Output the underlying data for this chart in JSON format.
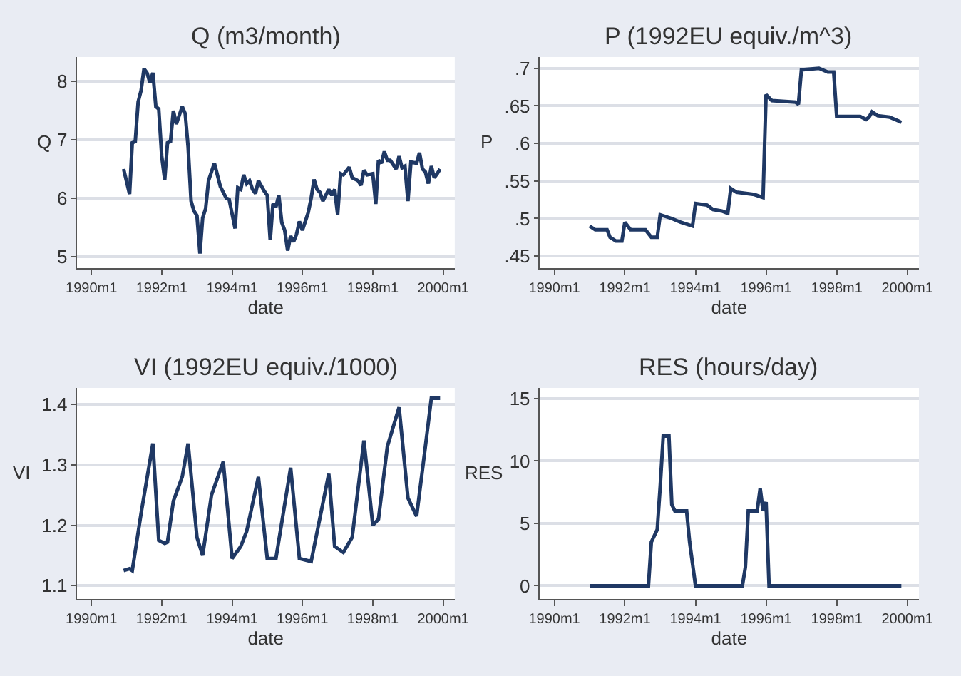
{
  "chart_data": [
    {
      "type": "line",
      "title": "Q (m3/month)",
      "xlabel": "date",
      "ylabel": "Q",
      "grid": "y",
      "xlim": [
        "1989-08",
        "2000-05"
      ],
      "xticks": [
        {
          "value": "1990-01",
          "label": "1990m1"
        },
        {
          "value": "1992-01",
          "label": "1992m1"
        },
        {
          "value": "1994-01",
          "label": "1994m1"
        },
        {
          "value": "1996-01",
          "label": "1996m1"
        },
        {
          "value": "1998-01",
          "label": "1998m1"
        },
        {
          "value": "2000-01",
          "label": "2000m1"
        }
      ],
      "ylim": [
        4.8,
        8.42
      ],
      "yticks": [
        5,
        6,
        7,
        8
      ],
      "series": [
        {
          "color": "#1f3864",
          "x": [
            "1990-12",
            "1991-02",
            "1991-03",
            "1991-04",
            "1991-05",
            "1991-06",
            "1991-07",
            "1991-08",
            "1991-09",
            "1991-10",
            "1991-11",
            "1991-12",
            "1992-01",
            "1992-02",
            "1992-03",
            "1992-04",
            "1992-05",
            "1992-06",
            "1992-07",
            "1992-08",
            "1992-09",
            "1992-10",
            "1992-11",
            "1992-12",
            "1993-01",
            "1993-02",
            "1993-03",
            "1993-04",
            "1993-05",
            "1993-07",
            "1993-09",
            "1993-11",
            "1993-12",
            "1994-02",
            "1994-03",
            "1994-04",
            "1994-05",
            "1994-06",
            "1994-07",
            "1994-08",
            "1994-09",
            "1994-10",
            "1994-12",
            "1995-01",
            "1995-02",
            "1995-03",
            "1995-04",
            "1995-05",
            "1995-06",
            "1995-07",
            "1995-08",
            "1995-09",
            "1995-10",
            "1995-11",
            "1995-12",
            "1996-01",
            "1996-03",
            "1996-04",
            "1996-05",
            "1996-06",
            "1996-07",
            "1996-08",
            "1996-10",
            "1996-11",
            "1996-12",
            "1997-01",
            "1997-02",
            "1997-03",
            "1997-05",
            "1997-06",
            "1997-08",
            "1997-09",
            "1997-10",
            "1997-11",
            "1998-01",
            "1998-02",
            "1998-03",
            "1998-04",
            "1998-05",
            "1998-06",
            "1998-07",
            "1998-09",
            "1998-10",
            "1998-11",
            "1998-12",
            "1999-01",
            "1999-02",
            "1999-04",
            "1999-05",
            "1999-06",
            "1999-07",
            "1999-08",
            "1999-09",
            "1999-10",
            "1999-11",
            "1999-12"
          ],
          "values": [
            6.5,
            6.07,
            6.95,
            6.97,
            7.65,
            7.85,
            8.22,
            8.15,
            7.98,
            8.15,
            7.57,
            7.53,
            6.72,
            6.32,
            6.95,
            6.97,
            7.5,
            7.27,
            7.42,
            7.57,
            7.45,
            6.88,
            5.95,
            5.78,
            5.7,
            5.05,
            5.66,
            5.82,
            6.3,
            6.6,
            6.2,
            6.0,
            5.98,
            5.48,
            6.18,
            6.15,
            6.4,
            6.25,
            6.3,
            6.15,
            6.08,
            6.3,
            6.12,
            6.05,
            5.28,
            5.9,
            5.85,
            6.05,
            5.58,
            5.45,
            5.1,
            5.35,
            5.25,
            5.38,
            5.6,
            5.45,
            5.75,
            6.0,
            6.32,
            6.15,
            6.1,
            5.95,
            6.15,
            6.05,
            6.15,
            5.72,
            6.42,
            6.4,
            6.53,
            6.35,
            6.3,
            6.22,
            6.48,
            6.4,
            6.42,
            5.9,
            6.65,
            6.6,
            6.8,
            6.65,
            6.65,
            6.5,
            6.72,
            6.52,
            6.55,
            5.95,
            6.62,
            6.6,
            6.78,
            6.5,
            6.45,
            6.25,
            6.55,
            6.35,
            6.42,
            6.5
          ]
        }
      ]
    },
    {
      "type": "line",
      "title": "P (1992EU equiv./m^3)",
      "xlabel": "date",
      "ylabel": "P",
      "grid": "y",
      "xlim": [
        "1989-08",
        "2000-05"
      ],
      "xticks": [
        {
          "value": "1990-01",
          "label": "1990m1"
        },
        {
          "value": "1992-01",
          "label": "1992m1"
        },
        {
          "value": "1994-01",
          "label": "1994m1"
        },
        {
          "value": "1996-01",
          "label": "1996m1"
        },
        {
          "value": "1998-01",
          "label": "1998m1"
        },
        {
          "value": "2000-01",
          "label": "2000m1"
        }
      ],
      "ylim": [
        0.434,
        0.715
      ],
      "yticks": [
        {
          "value": 0.45,
          "label": ".45"
        },
        {
          "value": 0.5,
          "label": ".5"
        },
        {
          "value": 0.55,
          "label": ".55"
        },
        {
          "value": 0.6,
          "label": ".6"
        },
        {
          "value": 0.65,
          "label": ".65"
        },
        {
          "value": 0.7,
          "label": ".7"
        }
      ],
      "series": [
        {
          "color": "#1f3864",
          "x": [
            "1991-01",
            "1991-03",
            "1991-07",
            "1991-08",
            "1991-10",
            "1991-12",
            "1992-01",
            "1992-03",
            "1992-08",
            "1992-10",
            "1992-12",
            "1993-01",
            "1993-05",
            "1993-08",
            "1993-12",
            "1994-01",
            "1994-05",
            "1994-07",
            "1994-10",
            "1994-12",
            "1995-01",
            "1995-03",
            "1995-09",
            "1995-12",
            "1996-01",
            "1996-03",
            "1996-11",
            "1996-12",
            "1997-01",
            "1997-07",
            "1997-10",
            "1997-12",
            "1998-01",
            "1998-09",
            "1998-11",
            "1998-12",
            "1999-01",
            "1999-03",
            "1999-07",
            "1999-10",
            "1999-11"
          ],
          "values": [
            0.49,
            0.485,
            0.485,
            0.475,
            0.47,
            0.47,
            0.495,
            0.485,
            0.485,
            0.475,
            0.475,
            0.505,
            0.5,
            0.495,
            0.49,
            0.52,
            0.518,
            0.512,
            0.51,
            0.507,
            0.54,
            0.535,
            0.532,
            0.528,
            0.665,
            0.657,
            0.655,
            0.652,
            0.698,
            0.7,
            0.695,
            0.695,
            0.636,
            0.636,
            0.632,
            0.635,
            0.642,
            0.637,
            0.635,
            0.63,
            0.628
          ]
        }
      ]
    },
    {
      "type": "line",
      "title": "VI (1992EU equiv./1000)",
      "xlabel": "date",
      "ylabel": "VI",
      "grid": "y",
      "xlim": [
        "1989-08",
        "2000-05"
      ],
      "xticks": [
        {
          "value": "1990-01",
          "label": "1990m1"
        },
        {
          "value": "1992-01",
          "label": "1992m1"
        },
        {
          "value": "1994-01",
          "label": "1994m1"
        },
        {
          "value": "1996-01",
          "label": "1996m1"
        },
        {
          "value": "1998-01",
          "label": "1998m1"
        },
        {
          "value": "2000-01",
          "label": "2000m1"
        }
      ],
      "ylim": [
        1.078,
        1.427
      ],
      "yticks": [
        1.1,
        1.2,
        1.3,
        1.4
      ],
      "series": [
        {
          "color": "#1f3864",
          "x": [
            "1990-12",
            "1991-02",
            "1991-03",
            "1991-06",
            "1991-10",
            "1991-12",
            "1992-02",
            "1992-03",
            "1992-05",
            "1992-08",
            "1992-10",
            "1993-01",
            "1993-03",
            "1993-06",
            "1993-10",
            "1994-01",
            "1994-04",
            "1994-06",
            "1994-10",
            "1995-01",
            "1995-04",
            "1995-09",
            "1995-12",
            "1996-04",
            "1996-10",
            "1996-12",
            "1997-03",
            "1997-06",
            "1997-10",
            "1998-01",
            "1998-03",
            "1998-06",
            "1998-10",
            "1999-01",
            "1999-04",
            "1999-07",
            "1999-09",
            "1999-12"
          ],
          "values": [
            1.125,
            1.128,
            1.125,
            1.22,
            1.335,
            1.175,
            1.17,
            1.172,
            1.24,
            1.28,
            1.335,
            1.18,
            1.15,
            1.25,
            1.305,
            1.145,
            1.165,
            1.19,
            1.28,
            1.145,
            1.145,
            1.295,
            1.145,
            1.14,
            1.285,
            1.165,
            1.155,
            1.18,
            1.34,
            1.2,
            1.21,
            1.33,
            1.395,
            1.245,
            1.215,
            1.33,
            1.41,
            1.41
          ]
        }
      ]
    },
    {
      "type": "line",
      "title": "RES (hours/day)",
      "xlabel": "date",
      "ylabel": "RES",
      "grid": "y",
      "xlim": [
        "1989-08",
        "2000-05"
      ],
      "xticks": [
        {
          "value": "1990-01",
          "label": "1990m1"
        },
        {
          "value": "1992-01",
          "label": "1992m1"
        },
        {
          "value": "1994-01",
          "label": "1994m1"
        },
        {
          "value": "1996-01",
          "label": "1996m1"
        },
        {
          "value": "1998-01",
          "label": "1998m1"
        },
        {
          "value": "2000-01",
          "label": "2000m1"
        }
      ],
      "ylim": [
        -1.06,
        15.85
      ],
      "yticks": [
        0,
        5,
        10,
        15
      ],
      "series": [
        {
          "color": "#1f3864",
          "x": [
            "1991-01",
            "1992-09",
            "1992-10",
            "1992-12",
            "1993-01",
            "1993-02",
            "1993-04",
            "1993-05",
            "1993-06",
            "1993-10",
            "1993-11",
            "1994-01",
            "1995-05",
            "1995-06",
            "1995-07",
            "1995-10",
            "1995-11",
            "1995-12",
            "1996-01",
            "1996-02",
            "1999-11"
          ],
          "values": [
            0,
            0,
            3.5,
            4.5,
            8,
            12,
            12,
            6.5,
            6,
            6,
            3.5,
            0,
            0,
            1.5,
            6,
            6,
            7.8,
            6,
            6.7,
            0,
            0
          ]
        }
      ]
    }
  ]
}
